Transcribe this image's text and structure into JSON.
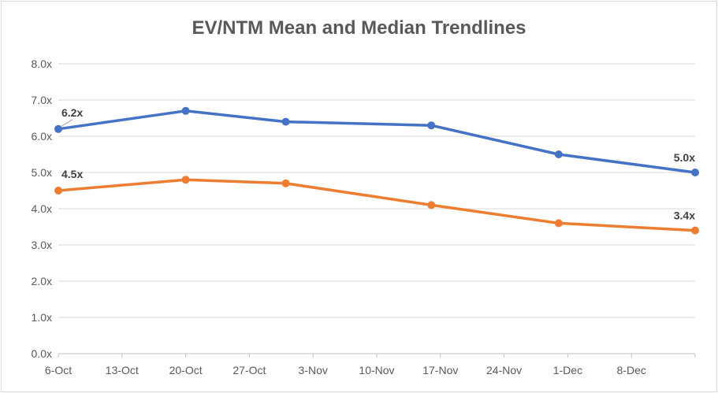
{
  "chart_data": {
    "type": "line",
    "title": "EV/NTM Mean and Median Trendlines",
    "xlabel": "",
    "ylabel": "",
    "x_ticks": [
      "6-Oct",
      "13-Oct",
      "20-Oct",
      "27-Oct",
      "3-Nov",
      "10-Nov",
      "17-Nov",
      "24-Nov",
      "1-Dec",
      "8-Dec"
    ],
    "x_range": [
      "6-Oct",
      "15-Dec"
    ],
    "y_ticks": [
      "0.0x",
      "1.0x",
      "2.0x",
      "3.0x",
      "4.0x",
      "5.0x",
      "6.0x",
      "7.0x",
      "8.0x"
    ],
    "ylim": [
      0,
      8
    ],
    "grid": "horizontal",
    "legend": "none",
    "series": [
      {
        "color": "#4472c4",
        "points": [
          {
            "x": "6-Oct",
            "y": 6.2
          },
          {
            "x": "20-Oct",
            "y": 6.7
          },
          {
            "x": "31-Oct",
            "y": 6.4
          },
          {
            "x": "16-Nov",
            "y": 6.3
          },
          {
            "x": "30-Nov",
            "y": 5.5
          },
          {
            "x": "15-Dec",
            "y": 5.0
          }
        ],
        "data_labels": [
          {
            "x": "6-Oct",
            "text": "6.2x"
          },
          {
            "x": "15-Dec",
            "text": "5.0x"
          }
        ]
      },
      {
        "color": "#ed7d31",
        "points": [
          {
            "x": "6-Oct",
            "y": 4.5
          },
          {
            "x": "20-Oct",
            "y": 4.8
          },
          {
            "x": "31-Oct",
            "y": 4.7
          },
          {
            "x": "16-Nov",
            "y": 4.1
          },
          {
            "x": "30-Nov",
            "y": 3.6
          },
          {
            "x": "15-Dec",
            "y": 3.4
          }
        ],
        "data_labels": [
          {
            "x": "6-Oct",
            "text": "4.5x"
          },
          {
            "x": "15-Dec",
            "text": "3.4x"
          }
        ]
      }
    ]
  }
}
